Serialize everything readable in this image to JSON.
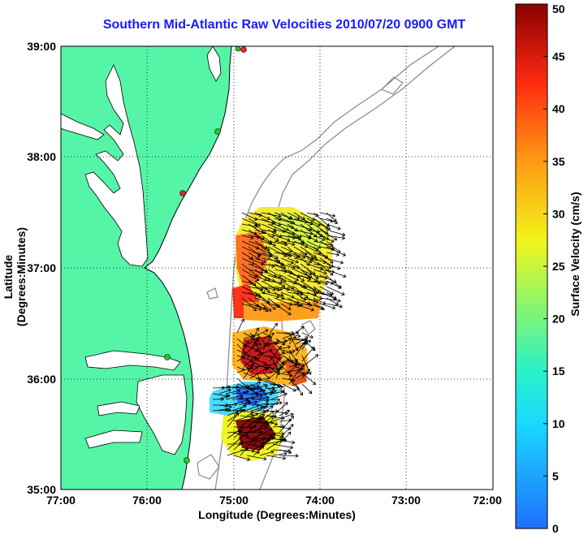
{
  "title": "Southern Mid-Atlantic Raw Velocities 2010/07/20 0900 GMT",
  "xlabel": "Longitude (Degrees:Minutes)",
  "ylabel": "Latitude (Degrees:Minutes)",
  "colorbar": {
    "label": "Surface Velocity (cm/s)",
    "ticks": [
      "0",
      "5",
      "10",
      "15",
      "20",
      "25",
      "30",
      "35",
      "40",
      "45",
      "50"
    ],
    "min": 0,
    "max": 50
  },
  "axes": {
    "x_ticks": [
      "77:00",
      "76:00",
      "75:00",
      "74:00",
      "73:00",
      "72:00"
    ],
    "y_ticks": [
      "39:00",
      "38:00",
      "37:00",
      "36:00",
      "35:00"
    ],
    "grid": "dotted"
  },
  "colors": {
    "land": "#55f5a8",
    "water": "#ffffff",
    "coast": "#000000",
    "bathymetry": "#888888",
    "title": "#1a1aff",
    "station_green": "#22cc22",
    "station_red": "#ee2222"
  }
}
